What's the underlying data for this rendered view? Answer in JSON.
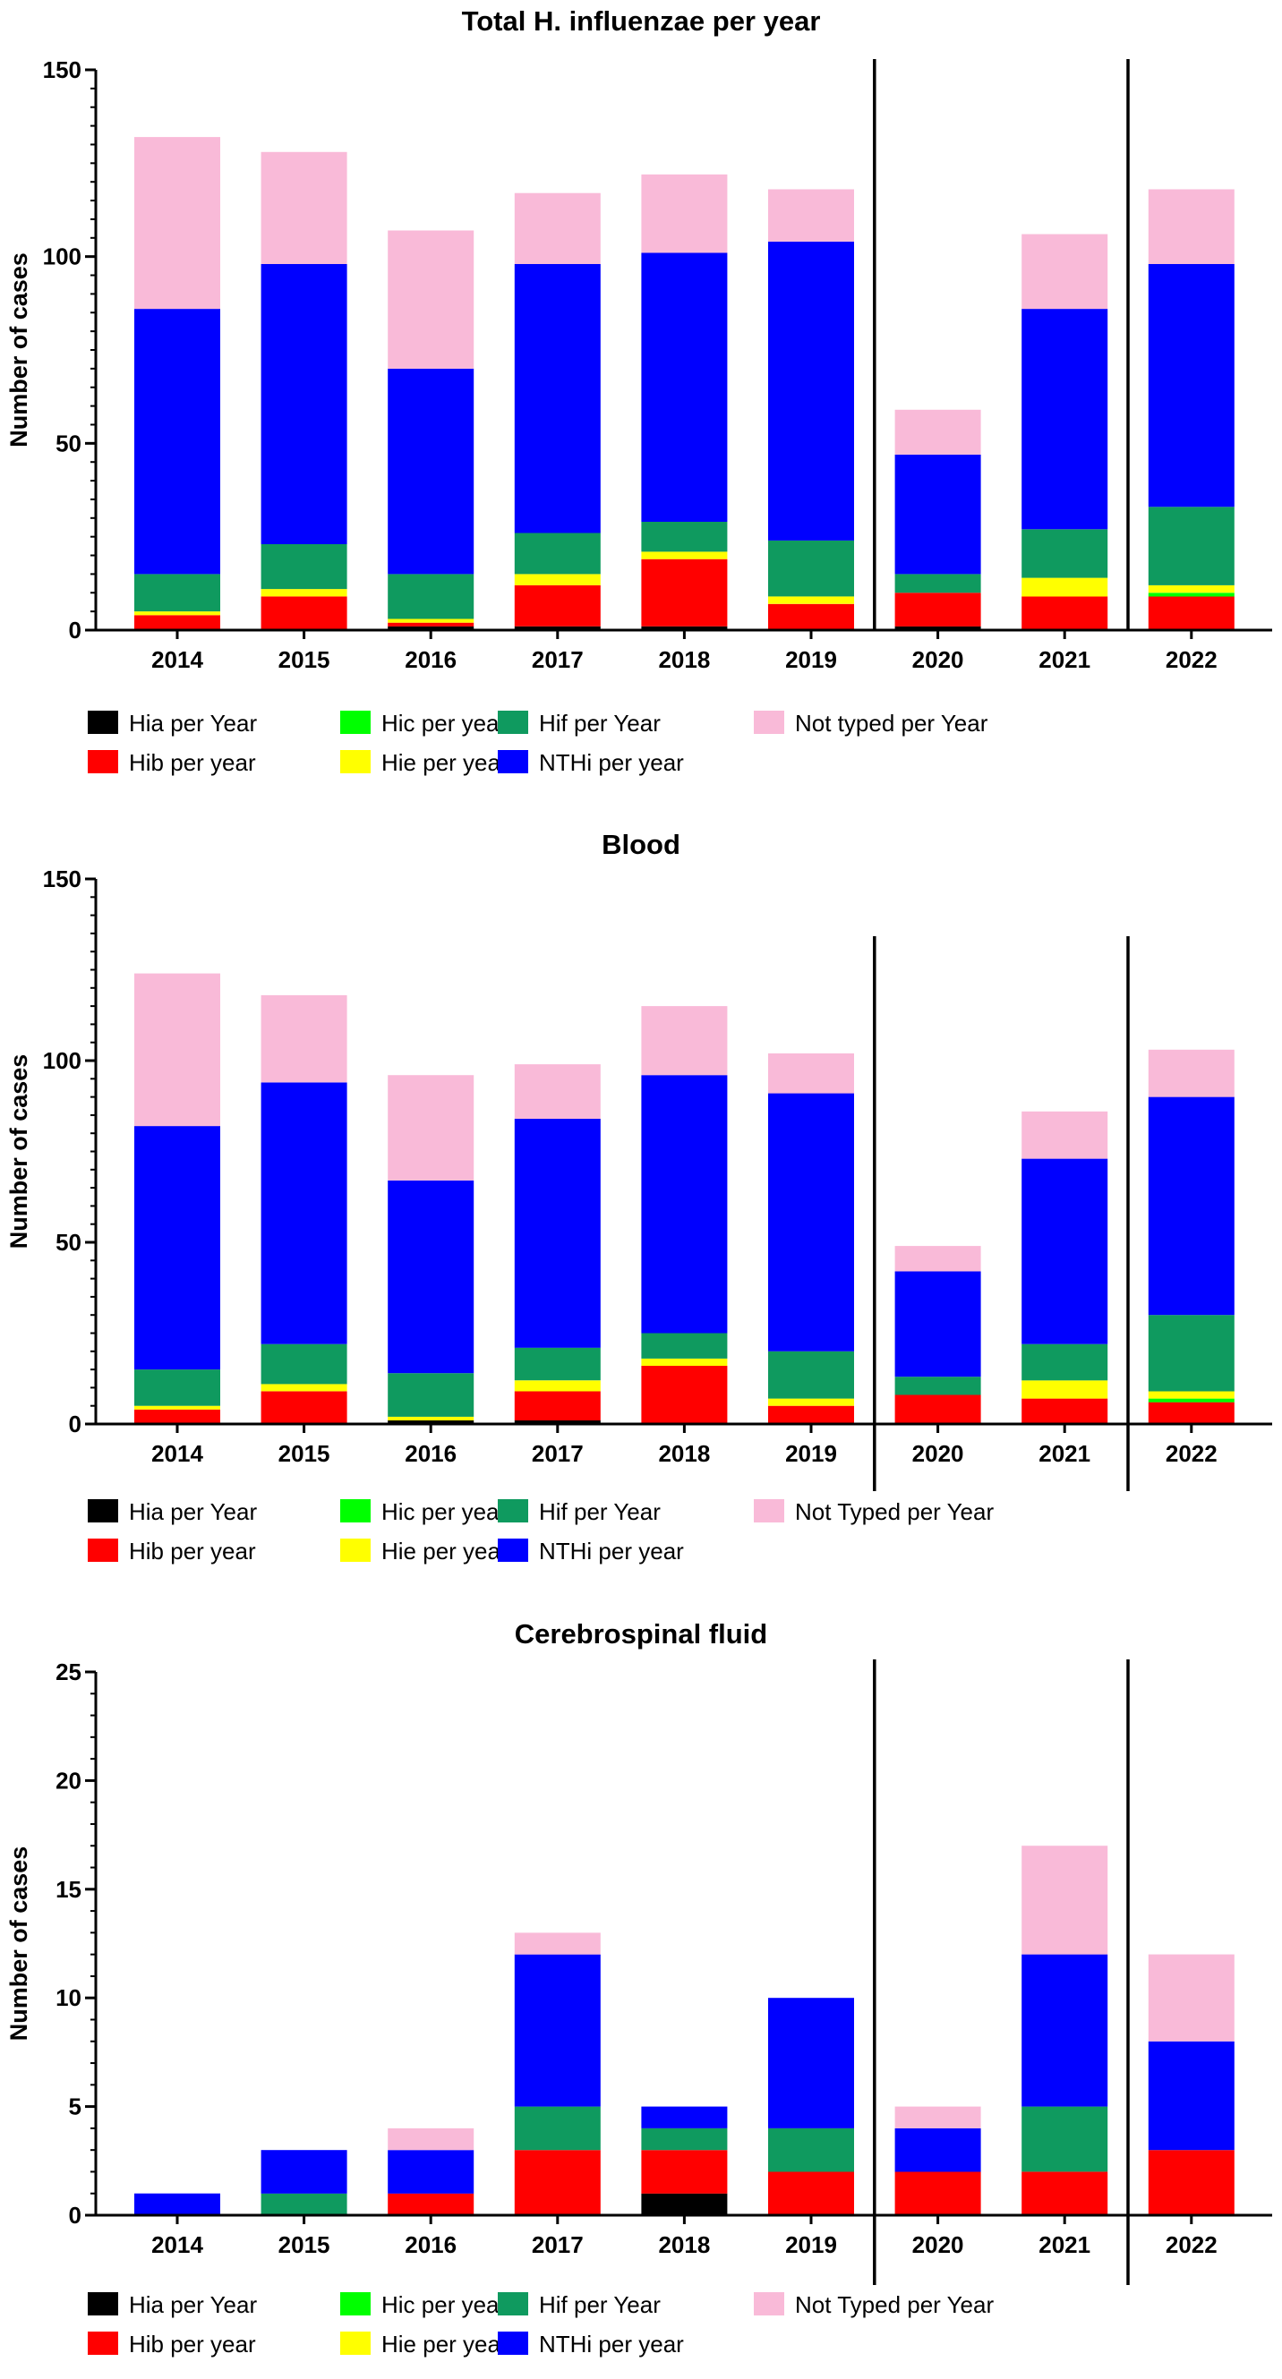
{
  "colors": {
    "hia": "#000000",
    "hib": "#ff0000",
    "hic": "#00ff00",
    "hie": "#ffff00",
    "hif": "#0f9a5f",
    "nthi": "#0000ff",
    "not_typed": "#f9bad8"
  },
  "chart_data": [
    {
      "type": "bar",
      "stacked": true,
      "title": "Total H. influenzae per year",
      "xlabel": "",
      "ylabel": "Number of cases",
      "ylim": [
        0,
        150
      ],
      "yticks": [
        0,
        50,
        100,
        150
      ],
      "categories": [
        "2014",
        "2015",
        "2016",
        "2017",
        "2018",
        "2019",
        "2020",
        "2021",
        "2022"
      ],
      "dividers_after": [
        "2019",
        "2021"
      ],
      "series": [
        {
          "name": "Hia per Year",
          "key": "hia",
          "values": [
            0,
            0,
            1,
            1,
            1,
            0,
            1,
            0,
            0
          ]
        },
        {
          "name": "Hib per year",
          "key": "hib",
          "values": [
            4,
            9,
            1,
            11,
            18,
            7,
            9,
            9,
            9
          ]
        },
        {
          "name": "Hic per year",
          "key": "hic",
          "values": [
            0,
            0,
            0,
            0,
            0,
            0,
            0,
            0,
            1
          ]
        },
        {
          "name": "Hie per year",
          "key": "hie",
          "values": [
            1,
            2,
            1,
            3,
            2,
            2,
            0,
            5,
            2
          ]
        },
        {
          "name": "Hif per Year",
          "key": "hif",
          "values": [
            10,
            12,
            12,
            11,
            8,
            15,
            5,
            13,
            21
          ]
        },
        {
          "name": "NTHi per year",
          "key": "nthi",
          "values": [
            71,
            75,
            55,
            72,
            72,
            80,
            32,
            59,
            65
          ]
        },
        {
          "name": "Not typed per Year",
          "key": "not_typed",
          "values": [
            46,
            30,
            37,
            19,
            21,
            14,
            12,
            20,
            20
          ]
        }
      ]
    },
    {
      "type": "bar",
      "stacked": true,
      "title": "Blood",
      "xlabel": "",
      "ylabel": "Number of cases",
      "ylim": [
        0,
        150
      ],
      "yticks": [
        0,
        50,
        100,
        150
      ],
      "categories": [
        "2014",
        "2015",
        "2016",
        "2017",
        "2018",
        "2019",
        "2020",
        "2021",
        "2022"
      ],
      "dividers_after": [
        "2019",
        "2021"
      ],
      "series": [
        {
          "name": "Hia per Year",
          "key": "hia",
          "values": [
            0,
            0,
            1,
            1,
            0,
            0,
            0,
            0,
            0
          ]
        },
        {
          "name": "Hib per year",
          "key": "hib",
          "values": [
            4,
            9,
            0,
            8,
            16,
            5,
            8,
            7,
            6
          ]
        },
        {
          "name": "Hic per year",
          "key": "hic",
          "values": [
            0,
            0,
            0,
            0,
            0,
            0,
            0,
            0,
            1
          ]
        },
        {
          "name": "Hie per year",
          "key": "hie",
          "values": [
            1,
            2,
            1,
            3,
            2,
            2,
            0,
            5,
            2
          ]
        },
        {
          "name": "Hif per Year",
          "key": "hif",
          "values": [
            10,
            11,
            12,
            9,
            7,
            13,
            5,
            10,
            21
          ]
        },
        {
          "name": "NTHi per year",
          "key": "nthi",
          "values": [
            67,
            72,
            53,
            63,
            71,
            71,
            29,
            51,
            60
          ]
        },
        {
          "name": "Not Typed per Year",
          "key": "not_typed",
          "values": [
            42,
            24,
            29,
            15,
            19,
            11,
            7,
            13,
            13
          ]
        }
      ]
    },
    {
      "type": "bar",
      "stacked": true,
      "title": "Cerebrospinal fluid",
      "xlabel": "",
      "ylabel": "Number of cases",
      "ylim": [
        0,
        25
      ],
      "yticks": [
        0,
        5,
        10,
        15,
        20,
        25
      ],
      "categories": [
        "2014",
        "2015",
        "2016",
        "2017",
        "2018",
        "2019",
        "2020",
        "2021",
        "2022"
      ],
      "dividers_after": [
        "2019",
        "2021"
      ],
      "series": [
        {
          "name": "Hia per Year",
          "key": "hia",
          "values": [
            0,
            0,
            0,
            0,
            1,
            0,
            0,
            0,
            0
          ]
        },
        {
          "name": "Hib per year",
          "key": "hib",
          "values": [
            0,
            0,
            1,
            3,
            2,
            2,
            2,
            2,
            3
          ]
        },
        {
          "name": "Hic per year",
          "key": "hic",
          "values": [
            0,
            0,
            0,
            0,
            0,
            0,
            0,
            0,
            0
          ]
        },
        {
          "name": "Hie per year",
          "key": "hie",
          "values": [
            0,
            0,
            0,
            0,
            0,
            0,
            0,
            0,
            0
          ]
        },
        {
          "name": "Hif per Year",
          "key": "hif",
          "values": [
            0,
            1,
            0,
            2,
            1,
            2,
            0,
            3,
            0
          ]
        },
        {
          "name": "NTHi per year",
          "key": "nthi",
          "values": [
            1,
            2,
            2,
            7,
            1,
            6,
            2,
            7,
            5
          ]
        },
        {
          "name": "Not Typed per Year",
          "key": "not_typed",
          "values": [
            0,
            0,
            1,
            1,
            0,
            0,
            1,
            5,
            4
          ]
        }
      ]
    }
  ]
}
